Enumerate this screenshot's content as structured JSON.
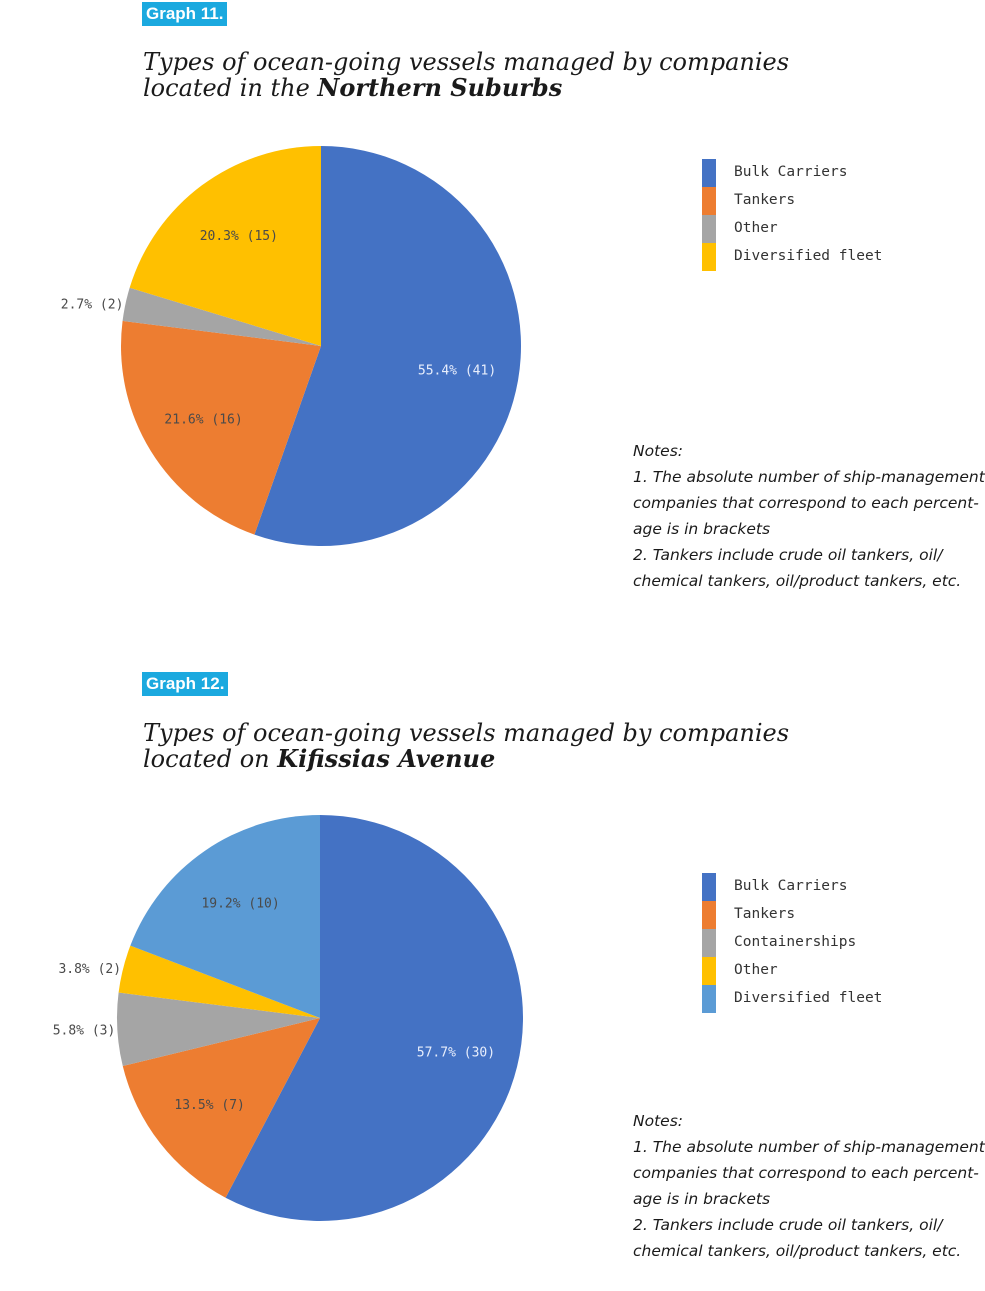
{
  "graphs": [
    {
      "tag": "Graph 11.",
      "title_line1": "Types of ocean-going vessels managed by companies",
      "title_line2_prefix": "located in the ",
      "title_line2_bold": "Northern Suburbs",
      "chart_data": {
        "type": "pie",
        "categories": [
          "Bulk Carriers",
          "Tankers",
          "Other",
          "Diversified fleet"
        ],
        "values": [
          55.4,
          21.6,
          2.7,
          20.3
        ],
        "counts": [
          41,
          16,
          2,
          15
        ],
        "labels": [
          "55.4% (41)",
          "21.6% (16)",
          "2.7% (2)",
          "20.3% (15)"
        ],
        "colors": [
          "#4472c4",
          "#ed7d31",
          "#a5a5a5",
          "#ffc000"
        ],
        "legend": "right"
      },
      "notes": [
        "Notes:",
        "1. The absolute number of ship-management",
        "companies that correspond to each percent-",
        "age is in brackets",
        "2. Tankers include crude oil tankers, oil/",
        "chemical tankers, oil/product tankers, etc."
      ]
    },
    {
      "tag": "Graph 12.",
      "title_line1": "Types of ocean-going vessels managed by companies",
      "title_line2_prefix": "located on ",
      "title_line2_bold": "Kifissias Avenue",
      "chart_data": {
        "type": "pie",
        "categories": [
          "Bulk Carriers",
          "Tankers",
          "Containerships",
          "Other",
          "Diversified fleet"
        ],
        "values": [
          57.7,
          13.5,
          5.8,
          3.8,
          19.2
        ],
        "counts": [
          30,
          7,
          3,
          2,
          10
        ],
        "labels": [
          "57.7% (30)",
          "13.5% (7)",
          "5.8% (3)",
          "3.8% (2)",
          "19.2% (10)"
        ],
        "colors": [
          "#4472c4",
          "#ed7d31",
          "#a5a5a5",
          "#ffc000",
          "#5b9bd5"
        ],
        "legend": "right"
      },
      "notes": [
        "Notes:",
        "1. The absolute number of ship-management",
        "companies that correspond to each percent-",
        "age is in brackets",
        "2. Tankers include crude oil tankers, oil/",
        "chemical tankers, oil/product tankers, etc."
      ]
    }
  ]
}
